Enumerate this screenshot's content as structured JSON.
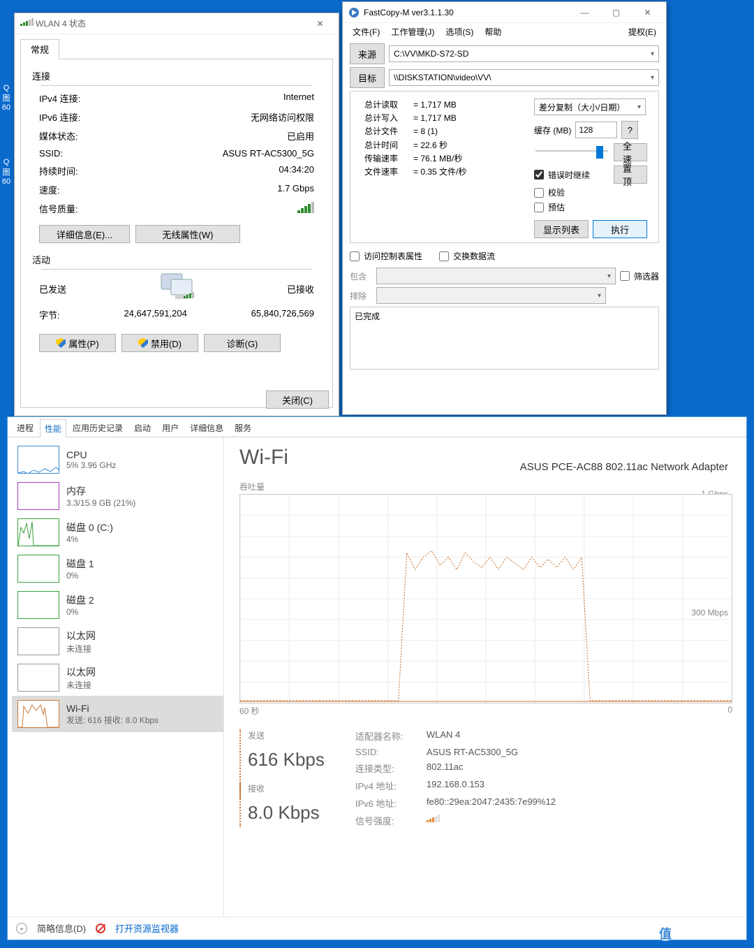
{
  "wlan": {
    "title": "WLAN 4 状态",
    "tab": "常规",
    "conn_section": "连接",
    "rows": {
      "ipv4_l": "IPv4 连接:",
      "ipv4_r": "Internet",
      "ipv6_l": "IPv6 连接:",
      "ipv6_r": "无网络访问权限",
      "media_l": "媒体状态:",
      "media_r": "已启用",
      "ssid_l": "SSID:",
      "ssid_r": "ASUS RT-AC5300_5G",
      "dur_l": "持续时间:",
      "dur_r": "04:34:20",
      "spd_l": "速度:",
      "spd_r": "1.7 Gbps",
      "sig_l": "信号质量:"
    },
    "btn_details": "详细信息(E)...",
    "btn_wprops": "无线属性(W)",
    "act_section": "活动",
    "sent": "已发送",
    "recv": "已接收",
    "bytes_l": "字节:",
    "bytes_sent": "24,647,591,204",
    "bytes_recv": "65,840,726,569",
    "btn_props": "属性(P)",
    "btn_disable": "禁用(D)",
    "btn_diag": "诊断(G)",
    "btn_close": "关闭(C)"
  },
  "fc": {
    "title": "FastCopy-M ver3.1.1.30",
    "menu": {
      "file": "文件(F)",
      "job": "工作管理(J)",
      "opt": "选项(S)",
      "help": "帮助",
      "rights": "提权(E)"
    },
    "src_btn": "来源",
    "src_val": "C:\\VV\\MKD-S72-SD",
    "dst_btn": "目标",
    "dst_val": "\\\\DISKSTATION\\video\\VV\\",
    "stats": {
      "read_l": "总计读取",
      "read_v": "= 1,717 MB",
      "write_l": "总计写入",
      "write_v": "= 1,717 MB",
      "files_l": "总计文件",
      "files_v": "= 8 (1)",
      "time_l": "总计时间",
      "time_v": "= 22.6 秒",
      "rate_l": "传输速率",
      "rate_v": "= 76.1 MB/秒",
      "frate_l": "文件速率",
      "frate_v": "= 0.35 文件/秒"
    },
    "mode": "差分复制（大小/日期）",
    "cache_l": "缓存 (MB)",
    "cache_v": "128",
    "q": "?",
    "full": "全速",
    "cb_cont": "错误时继续",
    "btn_top": "置顶",
    "cb_verify": "校验",
    "cb_est": "预估",
    "btn_list": "显示列表",
    "btn_exec": "执行",
    "cb_acl": "访问控制表属性",
    "cb_stream": "交换数据流",
    "inc_l": "包含",
    "exc_l": "排除",
    "filter": "筛选器",
    "log": "已完成",
    "slider_pos_pct": 82
  },
  "tm": {
    "tabs": [
      "进程",
      "性能",
      "应用历史记录",
      "启动",
      "用户",
      "详细信息",
      "服务"
    ],
    "active_tab_idx": 1,
    "side": [
      {
        "name": "CPU",
        "sub": "5%  3.96 GHz",
        "color": "#3a8ad6",
        "poly": "0,38 8,36 14,39 22,34 30,37 38,32 46,36 54,30 60,35",
        "sel": false
      },
      {
        "name": "内存",
        "sub": "3.3/15.9 GB (21%)",
        "color": "#a23dbb",
        "poly": "",
        "sel": false
      },
      {
        "name": "磁盘 0 (C:)",
        "sub": "4%",
        "color": "#3aa13d",
        "poly": "0,38 4,12 8,20 12,6 16,28 20,4 22,38 60,38",
        "sel": false
      },
      {
        "name": "磁盘 1",
        "sub": "0%",
        "color": "#3aa13d",
        "poly": "",
        "sel": false
      },
      {
        "name": "磁盘 2",
        "sub": "0%",
        "color": "#3aa13d",
        "poly": "",
        "sel": false
      },
      {
        "name": "以太网",
        "sub": "未连接",
        "color": "#999",
        "poly": "",
        "sel": false
      },
      {
        "name": "以太网",
        "sub": "未连接",
        "color": "#999",
        "poly": "",
        "sel": false
      },
      {
        "name": "Wi-Fi",
        "sub": "发送: 616  接收: 8.0 Kbps",
        "color": "#c97a3c",
        "poly": "0,38 6,38 8,8 14,18 20,6 26,14 32,6 36,20 38,10 42,38 60,38",
        "sel": true
      }
    ],
    "title": "Wi-Fi",
    "adapter": "ASUS PCE-AC88 802.11ac Network Adapter",
    "throughput": "吞吐量",
    "scale_top": "1 Gbps",
    "scale_mid": "300 Mbps",
    "scale_bot_l": "60 秒",
    "scale_bot_r": "0",
    "chart": {
      "color": "#c97a3c",
      "ylim": [
        0,
        1000
      ],
      "x_ratio_step": 0.0167,
      "points_mbps": [
        10,
        10,
        10,
        10,
        10,
        10,
        10,
        10,
        10,
        10,
        10,
        10,
        10,
        10,
        10,
        10,
        10,
        10,
        10,
        10,
        720,
        640,
        700,
        730,
        660,
        700,
        640,
        720,
        680,
        650,
        700,
        640,
        700,
        670,
        640,
        700,
        650,
        690,
        650,
        700,
        640,
        700,
        10,
        10,
        10,
        10,
        10,
        10,
        10,
        10,
        10,
        10,
        10,
        10,
        10,
        10,
        10,
        10,
        10,
        10
      ]
    },
    "send_l": "发送",
    "send_v": "616 Kbps",
    "recv_l": "接收",
    "recv_v": "8.0 Kbps",
    "kv": {
      "adp_l": "适配器名称:",
      "adp_v": "WLAN 4",
      "ssid_l": "SSID:",
      "ssid_v": "ASUS RT-AC5300_5G",
      "ct_l": "连接类型:",
      "ct_v": "802.11ac",
      "ip4_l": "IPv4 地址:",
      "ip4_v": "192.168.0.153",
      "ip6_l": "IPv6 地址:",
      "ip6_v": "fe80::29ea:2047:2435:7e99%12",
      "sig_l": "信号强度:"
    },
    "foot_brief": "简略信息(D)",
    "foot_resmon": "打开资源监视器"
  },
  "watermark": "什么值得买"
}
